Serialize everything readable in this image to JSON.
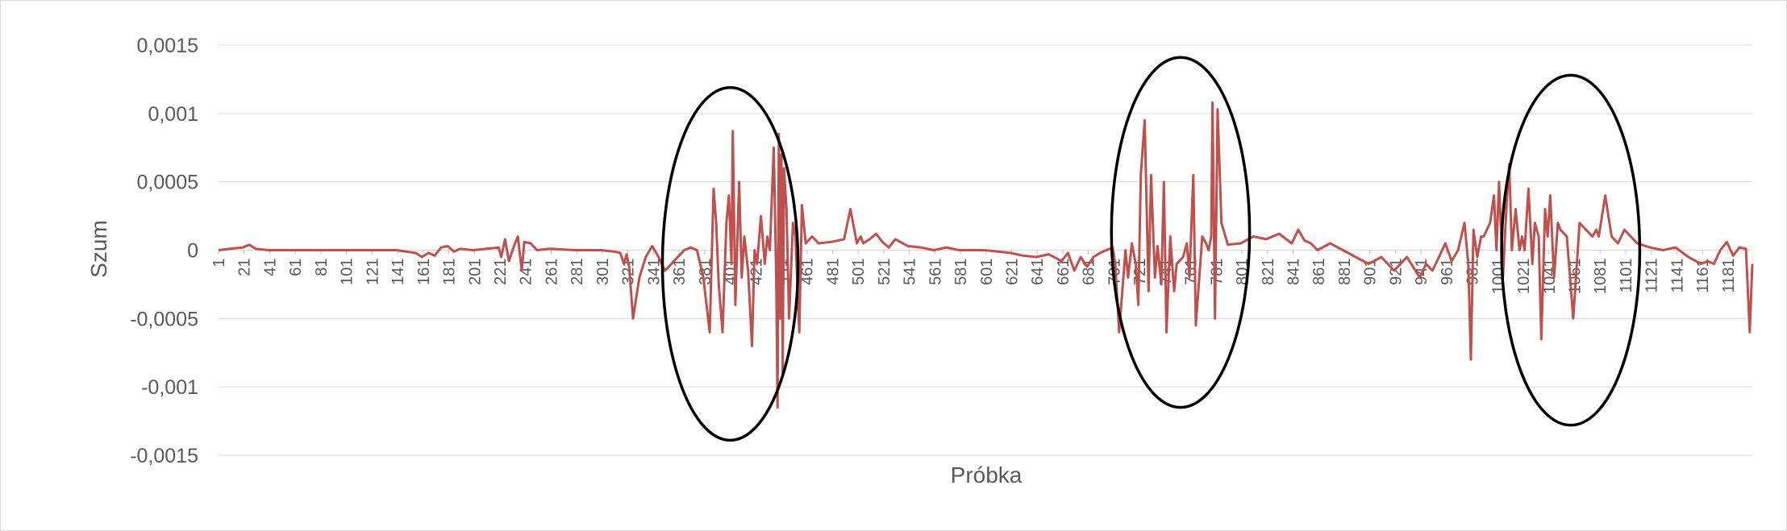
{
  "chart_data": {
    "type": "line",
    "title": "",
    "xlabel": "Próbka",
    "ylabel": "Szum",
    "xlim": [
      1,
      1200
    ],
    "ylim": [
      -0.0015,
      0.0015
    ],
    "y_ticks": [
      {
        "value": 0.0015,
        "label": "0,0015"
      },
      {
        "value": 0.001,
        "label": "0,001"
      },
      {
        "value": 0.0005,
        "label": "0,0005"
      },
      {
        "value": 0,
        "label": "0"
      },
      {
        "value": -0.0005,
        "label": "-0,0005"
      },
      {
        "value": -0.001,
        "label": "-0,001"
      },
      {
        "value": -0.0015,
        "label": "-0,0015"
      }
    ],
    "x_tick_labels": [
      "1",
      "21",
      "41",
      "61",
      "81",
      "101",
      "121",
      "141",
      "161",
      "181",
      "201",
      "221",
      "241",
      "261",
      "281",
      "301",
      "321",
      "341",
      "361",
      "381",
      "401",
      "421",
      "441",
      "461",
      "481",
      "501",
      "521",
      "541",
      "561",
      "581",
      "601",
      "621",
      "641",
      "661",
      "681",
      "701",
      "721",
      "741",
      "761",
      "781",
      "801",
      "821",
      "841",
      "861",
      "881",
      "901",
      "921",
      "941",
      "961",
      "981",
      "1001",
      "1021",
      "1041",
      "1061",
      "1081",
      "1101",
      "1121",
      "1141",
      "1161",
      "1181"
    ],
    "x_tick_step": 20,
    "grid": true,
    "legend": "none",
    "series_color": "#c0504d",
    "series": [
      {
        "x": [
          1,
          10,
          20,
          25,
          30,
          40,
          60,
          100,
          140,
          155,
          160,
          165,
          170,
          175,
          180,
          185,
          190,
          200,
          220,
          222,
          225,
          228,
          232,
          235,
          238,
          240,
          245,
          250,
          260,
          280,
          300,
          310,
          315,
          318,
          320,
          322,
          325,
          330,
          335,
          340,
          345,
          350,
          355,
          360,
          365,
          370,
          375,
          380,
          385,
          388,
          390,
          392,
          395,
          398,
          400,
          402,
          403,
          405,
          408,
          410,
          412,
          415,
          418,
          420,
          422,
          425,
          428,
          430,
          432,
          435,
          437,
          438,
          439,
          440,
          441,
          442,
          443,
          445,
          447,
          450,
          452,
          455,
          457,
          460,
          465,
          470,
          480,
          490,
          495,
          500,
          503,
          505,
          510,
          515,
          520,
          525,
          530,
          540,
          550,
          560,
          570,
          580,
          600,
          620,
          630,
          640,
          650,
          660,
          665,
          670,
          675,
          680,
          685,
          690,
          695,
          700,
          702,
          705,
          710,
          712,
          715,
          718,
          720,
          722,
          725,
          728,
          730,
          733,
          735,
          738,
          740,
          742,
          745,
          748,
          750,
          755,
          758,
          760,
          763,
          765,
          770,
          773,
          775,
          777,
          778,
          780,
          782,
          785,
          790,
          800,
          810,
          820,
          830,
          840,
          845,
          850,
          855,
          860,
          870,
          880,
          890,
          900,
          910,
          920,
          930,
          940,
          945,
          950,
          955,
          960,
          965,
          970,
          975,
          978,
          980,
          982,
          985,
          988,
          990,
          995,
          998,
          1000,
          1002,
          1005,
          1008,
          1010,
          1012,
          1015,
          1018,
          1020,
          1022,
          1025,
          1028,
          1030,
          1033,
          1035,
          1038,
          1040,
          1042,
          1045,
          1048,
          1050,
          1055,
          1060,
          1065,
          1070,
          1075,
          1078,
          1080,
          1085,
          1090,
          1095,
          1100,
          1110,
          1120,
          1130,
          1140,
          1150,
          1160,
          1165,
          1170,
          1175,
          1180,
          1185,
          1190,
          1195,
          1198,
          1200
        ],
        "values": [
          0.0,
          1e-05,
          2e-05,
          4e-05,
          1e-05,
          0.0,
          0.0,
          0.0,
          0.0,
          -2e-05,
          -5e-05,
          -2e-05,
          -4e-05,
          2e-05,
          3e-05,
          -1e-05,
          1e-05,
          0.0,
          2e-05,
          -5e-05,
          8e-05,
          -8e-05,
          3e-05,
          0.0001,
          -0.00015,
          6e-05,
          5e-05,
          0.0,
          1e-05,
          0.0,
          0.0,
          -1e-05,
          -2e-05,
          -0.0001,
          -3e-05,
          -0.00012,
          -0.0005,
          -0.0002,
          -5e-05,
          3e-05,
          -5e-05,
          -0.00015,
          -0.0001,
          -5e-05,
          0.0,
          2e-05,
          0.0,
          -0.0002,
          -0.0006,
          0.00045,
          0.0002,
          -0.00025,
          -0.0006,
          0.0002,
          0.0004,
          -0.0001,
          0.00087,
          -0.0004,
          0.0005,
          -0.0002,
          0.0001,
          -0.00015,
          -0.0007,
          0.0,
          -0.0001,
          0.00025,
          -0.0001,
          0.0001,
          0.0,
          0.00075,
          -0.0002,
          -0.00115,
          0.00085,
          -0.0005,
          0.0007,
          -0.0009,
          0.0006,
          0.0003,
          -0.0005,
          0.0002,
          0.0001,
          -0.0006,
          0.00033,
          5e-05,
          0.0001,
          5e-05,
          6e-05,
          8e-05,
          0.0003,
          5e-05,
          0.0001,
          5e-05,
          8e-05,
          0.00012,
          6e-05,
          2e-05,
          8e-05,
          3e-05,
          2e-05,
          0.0,
          2e-05,
          0.0,
          0.0,
          -2e-05,
          -4e-05,
          -5e-05,
          -3e-05,
          -8e-05,
          -2e-05,
          -0.00015,
          -5e-05,
          -0.00012,
          -5e-05,
          -2e-05,
          0.0,
          2e-05,
          -0.0001,
          -0.0006,
          0.0,
          -0.0002,
          5e-05,
          -0.0001,
          -0.0004,
          0.00055,
          0.00095,
          -0.0003,
          0.00055,
          -0.0002,
          3e-05,
          -0.00025,
          0.0005,
          -0.0006,
          0.0001,
          -0.0003,
          -0.0001,
          -5e-05,
          5e-05,
          -0.0002,
          0.00055,
          -0.00055,
          0.0001,
          5e-05,
          0.0,
          0.0001,
          0.00108,
          -0.0005,
          0.00103,
          0.0002,
          4e-05,
          5e-05,
          0.0001,
          8e-05,
          0.00012,
          5e-05,
          0.00015,
          7e-05,
          5e-05,
          0.0,
          5e-05,
          0.0,
          -5e-05,
          -0.0001,
          -5e-05,
          -0.00015,
          -5e-05,
          -0.0002,
          -0.0001,
          -0.00015,
          -5e-05,
          5e-05,
          -8e-05,
          0.0,
          0.0002,
          -0.0001,
          -0.0008,
          0.00015,
          -5e-05,
          0.0001,
          0.0001,
          0.0002,
          0.0004,
          0.0,
          0.0005,
          -0.0002,
          0.00035,
          0.00063,
          0.0,
          0.0003,
          0.0,
          0.0001,
          0.0,
          0.00045,
          -0.0001,
          0.0002,
          0.0001,
          -0.00065,
          0.0003,
          0.0001,
          0.0004,
          -0.0002,
          0.0002,
          0.00015,
          0.0001,
          -0.0005,
          0.0002,
          0.00015,
          0.0001,
          0.00015,
          0.0001,
          0.0004,
          0.0001,
          5e-05,
          0.00015,
          5e-05,
          2e-05,
          0.0,
          2e-05,
          -5e-05,
          -0.0001,
          -8e-05,
          -0.0001,
          0.0,
          6e-05,
          -4e-05,
          2e-05,
          1e-05,
          -0.0006,
          -0.0001
        ]
      }
    ],
    "annotations": [
      {
        "shape": "ellipse",
        "cx": 401,
        "cy": -0.0001,
        "rx_x": 53,
        "ry_y": 0.00129
      },
      {
        "shape": "ellipse",
        "cx": 753,
        "cy": 0.00013,
        "rx_x": 54,
        "ry_y": 0.00128
      },
      {
        "shape": "ellipse",
        "cx": 1058,
        "cy": 0.0,
        "rx_x": 54,
        "ry_y": 0.00128
      }
    ]
  }
}
